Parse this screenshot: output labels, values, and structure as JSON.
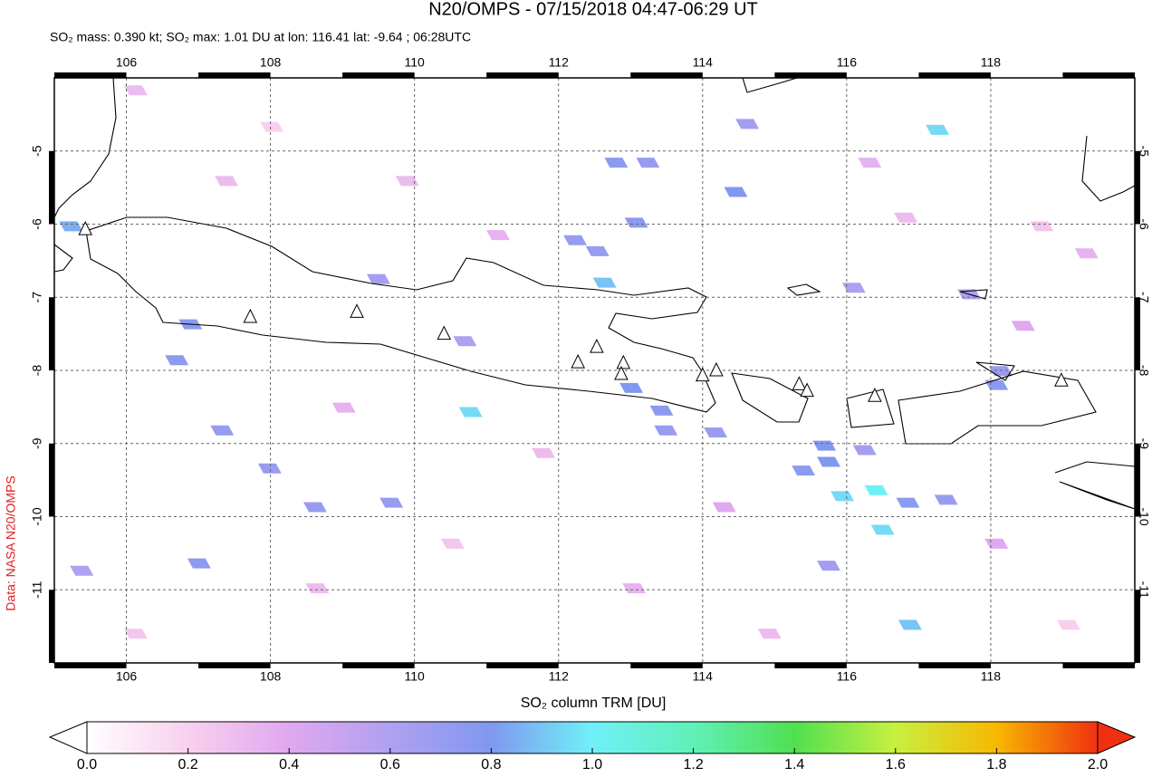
{
  "chart_data": {
    "type": "map",
    "title": "N20/OMPS - 07/15/2018 04:47-06:29 UT",
    "subtitle": "SO₂ mass: 0.390 kt; SO₂ max: 1.01 DU at lon: 116.41 lat: -9.64 ; 06:28UTC",
    "side_label": "Data: NASA N20/OMPS",
    "colorbar_label": "SO₂ column TRM [DU]",
    "xlim": [
      105,
      120
    ],
    "ylim": [
      -12,
      -4
    ],
    "xticks": [
      106,
      108,
      110,
      112,
      114,
      116,
      118
    ],
    "yticks": [
      -5,
      -6,
      -7,
      -8,
      -9,
      -10,
      -11
    ],
    "grid": true,
    "clim": [
      0,
      2
    ],
    "cticks": [
      {
        "value": 0,
        "label": "0.0"
      },
      {
        "value": 0.2,
        "label": "0.2"
      },
      {
        "value": 0.4,
        "label": "0.4"
      },
      {
        "value": 0.6,
        "label": "0.6"
      },
      {
        "value": 0.8,
        "label": "0.8"
      },
      {
        "value": 1,
        "label": "1.0"
      },
      {
        "value": 1.2,
        "label": "1.2"
      },
      {
        "value": 1.4,
        "label": "1.4"
      },
      {
        "value": 1.6,
        "label": "1.6"
      },
      {
        "value": 1.8,
        "label": "1.8"
      },
      {
        "value": 2,
        "label": "2.0"
      }
    ],
    "colorscale": [
      "#ffffff",
      "#f8d0ee",
      "#e0a8f0",
      "#b0a0f0",
      "#8098f0",
      "#70f0f8",
      "#60f0b8",
      "#50e050",
      "#c8f040",
      "#f8b800",
      "#f03010"
    ],
    "cells": {
      "lon": [
        112.8,
        113.24,
        114.62,
        117.26,
        114.46,
        112.23,
        112.54,
        112.64,
        113.08,
        105.23,
        109.5,
        106.89,
        106.7,
        110.78,
        113.01,
        113.43,
        113.49,
        114.18,
        115.69,
        115.75,
        115.4,
        116.25,
        115.94,
        116.41,
        116.85,
        117.38,
        116.5,
        116.88,
        115.75,
        118.14,
        118.08,
        117.7,
        116.1,
        107.99,
        108.62,
        109.68,
        107.01,
        107.33,
        105.38,
        110.7,
        106.13,
        108.02,
        109.9,
        111.16,
        116.82,
        118.71,
        119.33,
        118.45,
        111.79,
        110.53,
        108.65,
        106.13,
        113.05,
        114.93,
        118.08,
        119.08,
        114.3,
        109.02,
        107.39,
        116.32
      ],
      "lat": [
        -5.16,
        -5.16,
        -4.63,
        -4.71,
        -5.56,
        -6.22,
        -6.37,
        -6.8,
        -5.98,
        -6.03,
        -6.75,
        -7.37,
        -7.86,
        -8.57,
        -8.24,
        -8.55,
        -8.82,
        -8.85,
        -9.03,
        -9.25,
        -9.37,
        -9.09,
        -9.72,
        -9.64,
        -9.81,
        -9.77,
        -10.18,
        -11.48,
        -10.67,
        -8.01,
        -8.2,
        -6.96,
        -6.87,
        -9.34,
        -9.87,
        -9.81,
        -10.64,
        -8.82,
        -10.74,
        -7.6,
        -4.17,
        -4.67,
        -5.41,
        -6.15,
        -5.91,
        -6.03,
        -6.4,
        -7.39,
        -9.13,
        -10.37,
        -10.98,
        -11.6,
        -10.98,
        -11.6,
        -10.37,
        -11.48,
        -9.87,
        -8.51,
        -5.41,
        -5.16
      ],
      "values": [
        0.75,
        0.7,
        0.65,
        0.95,
        0.8,
        0.7,
        0.7,
        0.9,
        0.75,
        0.85,
        0.65,
        0.75,
        0.75,
        0.95,
        0.8,
        0.75,
        0.7,
        0.7,
        0.8,
        0.8,
        0.75,
        0.65,
        0.95,
        1.01,
        0.75,
        0.7,
        0.95,
        0.9,
        0.65,
        0.7,
        0.75,
        0.6,
        0.6,
        0.7,
        0.7,
        0.7,
        0.75,
        0.7,
        0.6,
        0.6,
        0.3,
        0.2,
        0.3,
        0.35,
        0.3,
        0.25,
        0.35,
        0.4,
        0.3,
        0.25,
        0.3,
        0.25,
        0.35,
        0.3,
        0.4,
        0.2,
        0.4,
        0.35,
        0.3,
        0.35
      ]
    },
    "volcanoes": {
      "lon": [
        105.43,
        107.72,
        109.2,
        110.41,
        112.27,
        112.53,
        112.9,
        112.87,
        114.0,
        114.19,
        115.34,
        115.45,
        116.39,
        118.98
      ],
      "lat": [
        -6.07,
        -7.27,
        -7.2,
        -7.5,
        -7.89,
        -7.68,
        -7.9,
        -8.05,
        -8.07,
        -8.0,
        -8.19,
        -8.28,
        -8.35,
        -8.14
      ]
    }
  }
}
